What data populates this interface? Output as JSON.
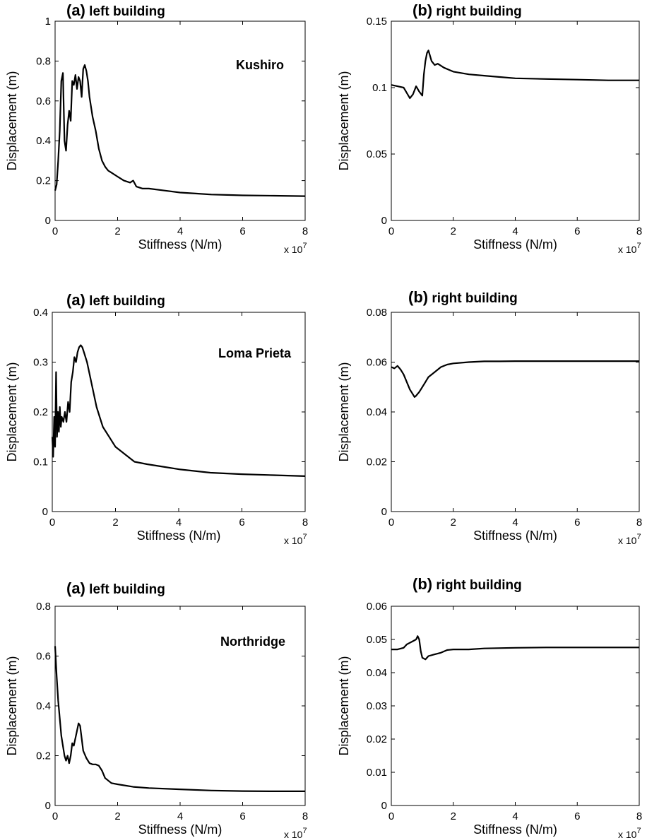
{
  "chart_data": [
    {
      "type": "line",
      "title": {
        "prefix": "(a)",
        "text": "left building"
      },
      "annotation": "Kushiro",
      "xlabel": "Stiffness (N/m)",
      "ylabel": "Displacement (m)",
      "x_multiplier": {
        "base": "x 10",
        "exp": "7"
      },
      "xlim": [
        0,
        8
      ],
      "ylim": [
        0,
        1
      ],
      "xticks": [
        0,
        2,
        4,
        6,
        8
      ],
      "yticks": [
        0,
        0.2,
        0.4,
        0.6,
        0.8,
        1
      ],
      "ytick_labels": [
        "0",
        "0.2",
        "0.4",
        "0.6",
        "0.8",
        "1"
      ],
      "series": [
        {
          "x": [
            0,
            0.05,
            0.1,
            0.15,
            0.2,
            0.25,
            0.3,
            0.35,
            0.4,
            0.45,
            0.5,
            0.55,
            0.6,
            0.65,
            0.7,
            0.75,
            0.8,
            0.85,
            0.9,
            0.95,
            1.0,
            1.05,
            1.1,
            1.2,
            1.3,
            1.4,
            1.5,
            1.6,
            1.7,
            1.8,
            2.0,
            2.2,
            2.4,
            2.5,
            2.6,
            2.8,
            3.0,
            3.5,
            4.0,
            4.5,
            5.0,
            5.5,
            6.0,
            7.0,
            8.0
          ],
          "y": [
            0.15,
            0.18,
            0.3,
            0.45,
            0.7,
            0.74,
            0.4,
            0.35,
            0.48,
            0.55,
            0.5,
            0.7,
            0.68,
            0.73,
            0.66,
            0.72,
            0.7,
            0.62,
            0.76,
            0.78,
            0.75,
            0.7,
            0.62,
            0.52,
            0.45,
            0.36,
            0.3,
            0.27,
            0.25,
            0.24,
            0.22,
            0.2,
            0.19,
            0.2,
            0.17,
            0.16,
            0.16,
            0.15,
            0.14,
            0.135,
            0.13,
            0.128,
            0.126,
            0.124,
            0.122
          ]
        }
      ]
    },
    {
      "type": "line",
      "title": {
        "prefix": "(b)",
        "text": "right building"
      },
      "annotation": "",
      "xlabel": "Stiffness (N/m)",
      "ylabel": "Displacement (m)",
      "x_multiplier": {
        "base": "x 10",
        "exp": "7"
      },
      "xlim": [
        0,
        8
      ],
      "ylim": [
        0,
        0.15
      ],
      "xticks": [
        0,
        2,
        4,
        6,
        8
      ],
      "yticks": [
        0,
        0.05,
        0.1,
        0.15
      ],
      "ytick_labels": [
        "0",
        "0.05",
        "0.1",
        "0.15"
      ],
      "series": [
        {
          "x": [
            0,
            0.2,
            0.4,
            0.5,
            0.6,
            0.7,
            0.8,
            0.9,
            1.0,
            1.05,
            1.1,
            1.15,
            1.2,
            1.3,
            1.4,
            1.5,
            1.7,
            2.0,
            2.5,
            3.0,
            3.5,
            4.0,
            5.0,
            6.0,
            7.0,
            8.0
          ],
          "y": [
            0.102,
            0.101,
            0.1,
            0.096,
            0.092,
            0.095,
            0.101,
            0.097,
            0.094,
            0.11,
            0.12,
            0.126,
            0.128,
            0.12,
            0.117,
            0.118,
            0.115,
            0.112,
            0.11,
            0.109,
            0.108,
            0.107,
            0.1065,
            0.106,
            0.1055,
            0.1055
          ]
        }
      ]
    },
    {
      "type": "line",
      "title": {
        "prefix": "(a)",
        "text": "left building"
      },
      "annotation": "Loma Prieta",
      "xlabel": "Stiffness (N/m)",
      "ylabel": "Displacement (m)",
      "x_multiplier": {
        "base": "x 10",
        "exp": "7"
      },
      "xlim": [
        0,
        8
      ],
      "ylim": [
        0,
        0.4
      ],
      "xticks": [
        0,
        2,
        4,
        6,
        8
      ],
      "yticks": [
        0,
        0.1,
        0.2,
        0.3,
        0.4
      ],
      "ytick_labels": [
        "0",
        "0.1",
        "0.2",
        "0.3",
        "0.4"
      ],
      "series": [
        {
          "x": [
            0,
            0.03,
            0.06,
            0.09,
            0.12,
            0.15,
            0.18,
            0.21,
            0.24,
            0.27,
            0.3,
            0.35,
            0.4,
            0.45,
            0.5,
            0.55,
            0.6,
            0.65,
            0.7,
            0.75,
            0.8,
            0.85,
            0.9,
            0.95,
            1.0,
            1.1,
            1.2,
            1.3,
            1.4,
            1.5,
            1.6,
            1.8,
            2.0,
            2.2,
            2.5,
            2.6,
            3.0,
            3.5,
            4.0,
            5.0,
            6.0,
            7.0,
            8.0
          ],
          "y": [
            0.15,
            0.11,
            0.19,
            0.13,
            0.28,
            0.15,
            0.2,
            0.16,
            0.21,
            0.17,
            0.19,
            0.18,
            0.2,
            0.18,
            0.22,
            0.2,
            0.26,
            0.28,
            0.31,
            0.3,
            0.32,
            0.33,
            0.334,
            0.33,
            0.32,
            0.3,
            0.27,
            0.24,
            0.21,
            0.19,
            0.17,
            0.15,
            0.13,
            0.12,
            0.105,
            0.1,
            0.095,
            0.09,
            0.085,
            0.078,
            0.075,
            0.073,
            0.071
          ]
        }
      ]
    },
    {
      "type": "line",
      "title": {
        "prefix": "(b)",
        "text": "right building"
      },
      "annotation": "",
      "xlabel": "Stiffness (N/m)",
      "ylabel": "Displacement (m)",
      "x_multiplier": {
        "base": "x 10",
        "exp": "7"
      },
      "xlim": [
        0,
        8
      ],
      "ylim": [
        0,
        0.08
      ],
      "xticks": [
        0,
        2,
        4,
        6,
        8
      ],
      "yticks": [
        0,
        0.02,
        0.04,
        0.06,
        0.08
      ],
      "ytick_labels": [
        "0",
        "0.02",
        "0.04",
        "0.06",
        "0.08"
      ],
      "series": [
        {
          "x": [
            0,
            0.1,
            0.2,
            0.3,
            0.4,
            0.5,
            0.6,
            0.7,
            0.75,
            0.8,
            0.9,
            1.0,
            1.1,
            1.2,
            1.4,
            1.6,
            1.8,
            2.0,
            2.5,
            3.0,
            3.5,
            4.0,
            5.0,
            6.0,
            7.0,
            8.0
          ],
          "y": [
            0.058,
            0.0575,
            0.0585,
            0.057,
            0.055,
            0.052,
            0.049,
            0.047,
            0.046,
            0.0465,
            0.048,
            0.05,
            0.052,
            0.054,
            0.056,
            0.058,
            0.059,
            0.0595,
            0.06,
            0.0603,
            0.0603,
            0.0604,
            0.0604,
            0.0604,
            0.0604,
            0.0604
          ]
        }
      ]
    },
    {
      "type": "line",
      "title": {
        "prefix": "(a)",
        "text": "left building"
      },
      "annotation": "Northridge",
      "xlabel": "Stiffness (N/m)",
      "ylabel": "Displacement (m)",
      "x_multiplier": {
        "base": "x 10",
        "exp": "7"
      },
      "xlim": [
        0,
        8
      ],
      "ylim": [
        0,
        0.8
      ],
      "xticks": [
        0,
        2,
        4,
        6,
        8
      ],
      "yticks": [
        0,
        0.2,
        0.4,
        0.6,
        0.8
      ],
      "ytick_labels": [
        "0",
        "0.2",
        "0.4",
        "0.6",
        "0.8"
      ],
      "series": [
        {
          "x": [
            0,
            0.05,
            0.1,
            0.15,
            0.2,
            0.3,
            0.35,
            0.4,
            0.45,
            0.5,
            0.55,
            0.6,
            0.7,
            0.75,
            0.8,
            0.85,
            0.9,
            1.0,
            1.1,
            1.2,
            1.3,
            1.4,
            1.5,
            1.6,
            1.8,
            2.0,
            2.5,
            3.0,
            4.0,
            5.0,
            6.0,
            7.0,
            8.0
          ],
          "y": [
            0.64,
            0.52,
            0.42,
            0.35,
            0.28,
            0.2,
            0.18,
            0.2,
            0.17,
            0.2,
            0.25,
            0.24,
            0.3,
            0.33,
            0.32,
            0.27,
            0.22,
            0.19,
            0.17,
            0.165,
            0.165,
            0.16,
            0.14,
            0.11,
            0.09,
            0.085,
            0.075,
            0.07,
            0.065,
            0.06,
            0.058,
            0.057,
            0.057
          ]
        }
      ]
    },
    {
      "type": "line",
      "title": {
        "prefix": "(b)",
        "text": "right building"
      },
      "annotation": "",
      "xlabel": "Stiffness (N/m)",
      "ylabel": "Displacement (m)",
      "x_multiplier": {
        "base": "x 10",
        "exp": "7"
      },
      "xlim": [
        0,
        8
      ],
      "ylim": [
        0,
        0.06
      ],
      "xticks": [
        0,
        2,
        4,
        6,
        8
      ],
      "yticks": [
        0,
        0.01,
        0.02,
        0.03,
        0.04,
        0.05,
        0.06
      ],
      "ytick_labels": [
        "0",
        "0.01",
        "0.02",
        "0.03",
        "0.04",
        "0.05",
        "0.06"
      ],
      "series": [
        {
          "x": [
            0,
            0.2,
            0.4,
            0.5,
            0.6,
            0.7,
            0.8,
            0.85,
            0.9,
            0.95,
            1.0,
            1.1,
            1.2,
            1.4,
            1.6,
            1.8,
            2.0,
            2.5,
            3.0,
            4.0,
            5.0,
            6.0,
            7.0,
            8.0
          ],
          "y": [
            0.047,
            0.047,
            0.0475,
            0.0485,
            0.049,
            0.0495,
            0.05,
            0.051,
            0.05,
            0.0465,
            0.0445,
            0.044,
            0.045,
            0.0455,
            0.046,
            0.0468,
            0.047,
            0.047,
            0.0473,
            0.0475,
            0.0476,
            0.0476,
            0.0476,
            0.0476
          ]
        }
      ]
    }
  ]
}
